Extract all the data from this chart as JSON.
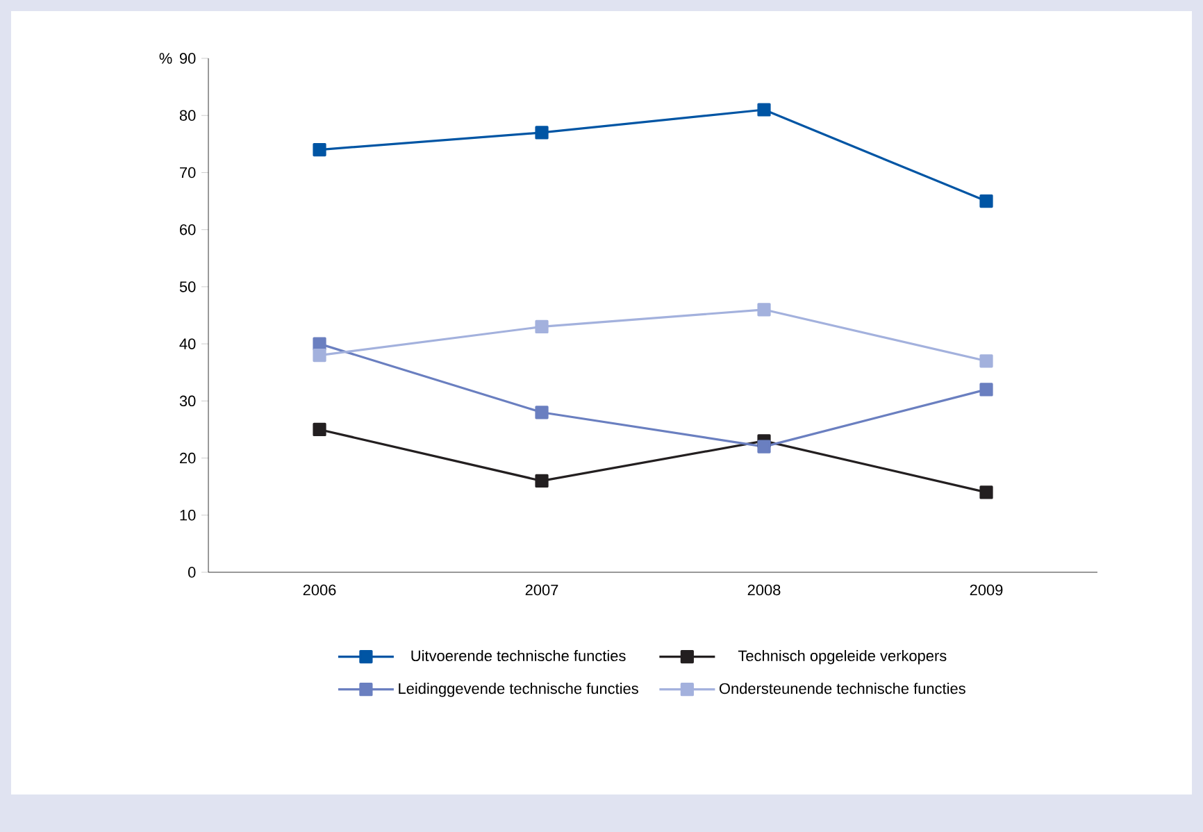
{
  "chart_data": {
    "type": "line",
    "ylabel": "%",
    "categories": [
      "2006",
      "2007",
      "2008",
      "2009"
    ],
    "series": [
      {
        "name": "Uitvoerende technische functies",
        "color": "#0055a4",
        "values": [
          74,
          77,
          81,
          65
        ]
      },
      {
        "name": "Technisch opgeleide verkopers",
        "color": "#231f20",
        "values": [
          25,
          16,
          23,
          14
        ]
      },
      {
        "name": "Leidinggevende technische functies",
        "color": "#6a7fc0",
        "values": [
          40,
          28,
          22,
          32
        ]
      },
      {
        "name": "Ondersteunende technische functies",
        "color": "#a3b1dd",
        "values": [
          38,
          43,
          46,
          37
        ]
      }
    ],
    "ylim": [
      0,
      90
    ],
    "yticks": [
      0,
      10,
      20,
      30,
      40,
      50,
      60,
      70,
      80,
      90
    ],
    "grid": false,
    "legend": "bottom",
    "marker": "square",
    "line_style": "solid"
  }
}
